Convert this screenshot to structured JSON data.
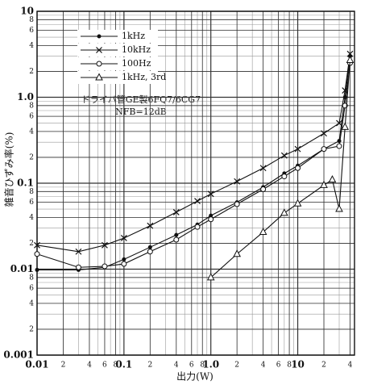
{
  "chart_data": {
    "type": "line",
    "xlabel": "出力(W)",
    "ylabel": "雑音ひずみ率(%)",
    "annotations": [
      "ドライバ管GE製6FQ7/6CG7",
      "NFB=12dB"
    ],
    "log_x": true,
    "log_y": true,
    "grid": true,
    "minor_grid": true,
    "legend": "upper left",
    "xlim": [
      0.01,
      45
    ],
    "ylim": [
      0.001,
      10
    ],
    "xticks": [
      0.01,
      {
        "value": 0.02,
        "label": "2"
      },
      {
        "value": 0.04,
        "label": "4"
      },
      {
        "value": 0.06,
        "label": "6"
      },
      {
        "value": 0.08,
        "label": "8"
      },
      0.1,
      {
        "value": 0.2,
        "label": "2"
      },
      {
        "value": 0.4,
        "label": "4"
      },
      {
        "value": 0.6,
        "label": "6"
      },
      {
        "value": 0.8,
        "label": "8"
      },
      {
        "value": 1,
        "label": "1.0"
      },
      {
        "value": 2,
        "label": "2"
      },
      {
        "value": 4,
        "label": "4"
      },
      {
        "value": 6,
        "label": "6"
      },
      {
        "value": 8,
        "label": "8"
      },
      10,
      {
        "value": 20,
        "label": "2"
      },
      {
        "value": 40,
        "label": "4"
      }
    ],
    "yticks": [
      0.001,
      {
        "value": 0.002,
        "label": "2"
      },
      {
        "value": 0.004,
        "label": "4"
      },
      {
        "value": 0.006,
        "label": "6"
      },
      {
        "value": 0.008,
        "label": "8"
      },
      0.01,
      {
        "value": 0.02,
        "label": "2"
      },
      {
        "value": 0.04,
        "label": "4"
      },
      {
        "value": 0.06,
        "label": "6"
      },
      {
        "value": 0.08,
        "label": "8"
      },
      0.1,
      {
        "value": 0.2,
        "label": "2"
      },
      {
        "value": 0.4,
        "label": "4"
      },
      {
        "value": 0.6,
        "label": "6"
      },
      {
        "value": 0.8,
        "label": "8"
      },
      {
        "value": 1,
        "label": "1.0"
      },
      {
        "value": 2,
        "label": "2"
      },
      {
        "value": 4,
        "label": "4"
      },
      {
        "value": 6,
        "label": "6"
      },
      {
        "value": 8,
        "label": "8"
      },
      10
    ],
    "series": [
      {
        "name": "1kHz",
        "color": "#111",
        "marker": "dot",
        "x": [
          0.01,
          0.03,
          0.06,
          0.1,
          0.2,
          0.4,
          0.7,
          1,
          2,
          4,
          7,
          10,
          20,
          30,
          35,
          40
        ],
        "values": [
          0.0098,
          0.0098,
          0.0105,
          0.013,
          0.018,
          0.025,
          0.033,
          0.042,
          0.06,
          0.09,
          0.13,
          0.16,
          0.25,
          0.31,
          1.0,
          3.0
        ]
      },
      {
        "name": "10kHz",
        "color": "#111",
        "marker": "cross",
        "x": [
          0.01,
          0.03,
          0.06,
          0.1,
          0.2,
          0.4,
          0.7,
          1,
          2,
          4,
          7,
          10,
          20,
          30,
          35,
          40
        ],
        "values": [
          0.019,
          0.016,
          0.019,
          0.023,
          0.032,
          0.046,
          0.062,
          0.075,
          0.105,
          0.15,
          0.21,
          0.25,
          0.38,
          0.5,
          1.2,
          3.2
        ]
      },
      {
        "name": "100Hz",
        "color": "#111",
        "marker": "circle",
        "x": [
          0.01,
          0.03,
          0.06,
          0.1,
          0.2,
          0.4,
          0.7,
          1,
          2,
          4,
          7,
          10,
          20,
          30,
          35,
          40
        ],
        "values": [
          0.015,
          0.0105,
          0.0108,
          0.0115,
          0.016,
          0.022,
          0.031,
          0.038,
          0.057,
          0.085,
          0.12,
          0.15,
          0.25,
          0.27,
          0.8,
          2.5
        ]
      },
      {
        "name": "1kHz, 3rd",
        "color": "#111",
        "marker": "triangle",
        "x": [
          1,
          2,
          4,
          7,
          10,
          20,
          25,
          30,
          35,
          40
        ],
        "values": [
          0.008,
          0.015,
          0.027,
          0.045,
          0.058,
          0.095,
          0.11,
          0.05,
          0.45,
          2.7
        ]
      }
    ]
  }
}
